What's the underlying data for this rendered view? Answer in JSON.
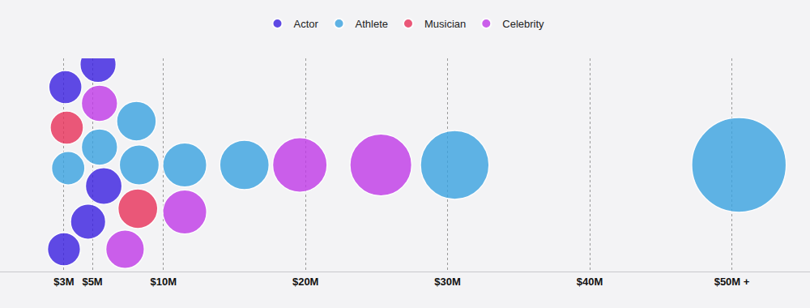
{
  "chart_data": {
    "type": "scatter",
    "marker": "circle",
    "grid": true,
    "legend": "top",
    "tick_labels": "x",
    "xlim": [
      -1.5,
      55.5
    ],
    "xticks": [
      {
        "value": 3,
        "label": "$3M"
      },
      {
        "value": 5,
        "label": "$5M"
      },
      {
        "value": 10,
        "label": "$10M"
      },
      {
        "value": 20,
        "label": "$20M"
      },
      {
        "value": 30,
        "label": "$30M"
      },
      {
        "value": 40,
        "label": "$40M"
      },
      {
        "value": 50,
        "label": "$50M +"
      }
    ],
    "series": [
      {
        "name": "Actor",
        "color": "#3a1fe0",
        "values": [
          3.0,
          3.1,
          4.7,
          5.4,
          5.8
        ]
      },
      {
        "name": "Athlete",
        "color": "#3aa3e0",
        "values": [
          3.3,
          5.5,
          8.3,
          8.1,
          11.5,
          15.7,
          30.5,
          50.5
        ]
      },
      {
        "name": "Musician",
        "color": "#e8315a",
        "values": [
          3.2,
          8.2
        ]
      },
      {
        "name": "Celebrity",
        "color": "#c03ae8",
        "values": [
          5.5,
          7.3,
          11.5,
          19.6,
          25.3
        ]
      }
    ]
  }
}
